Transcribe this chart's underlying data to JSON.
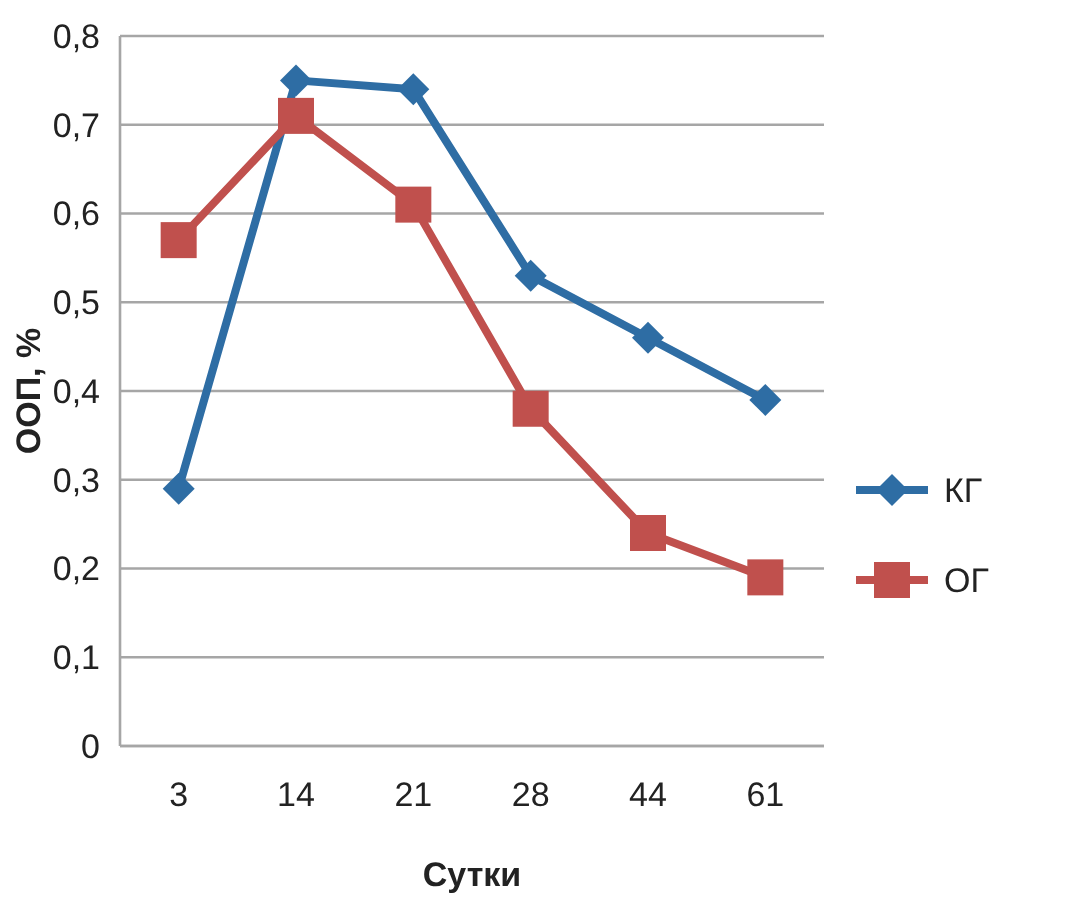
{
  "chart_data": {
    "type": "line",
    "xlabel": "Сутки",
    "ylabel": "ООП, %",
    "categories": [
      "3",
      "14",
      "21",
      "28",
      "44",
      "61"
    ],
    "series": [
      {
        "name": "КГ",
        "color": "#2e6da4",
        "values": [
          0.29,
          0.75,
          0.74,
          0.53,
          0.46,
          0.39
        ],
        "marker": "diamond"
      },
      {
        "name": "ОГ",
        "color": "#c0504d",
        "values": [
          0.57,
          0.71,
          0.61,
          0.38,
          0.24,
          0.19
        ],
        "marker": "square"
      }
    ],
    "ylim": [
      0,
      0.8
    ],
    "yticks": [
      {
        "value": 0,
        "label": "0"
      },
      {
        "value": 0.1,
        "label": "0,1"
      },
      {
        "value": 0.2,
        "label": "0,2"
      },
      {
        "value": 0.3,
        "label": "0,3"
      },
      {
        "value": 0.4,
        "label": "0,4"
      },
      {
        "value": 0.5,
        "label": "0,5"
      },
      {
        "value": 0.6,
        "label": "0,6"
      },
      {
        "value": 0.7,
        "label": "0,7"
      },
      {
        "value": 0.8,
        "label": "0,8"
      }
    ],
    "grid": "y",
    "legend": "right",
    "line_style": "solid"
  }
}
